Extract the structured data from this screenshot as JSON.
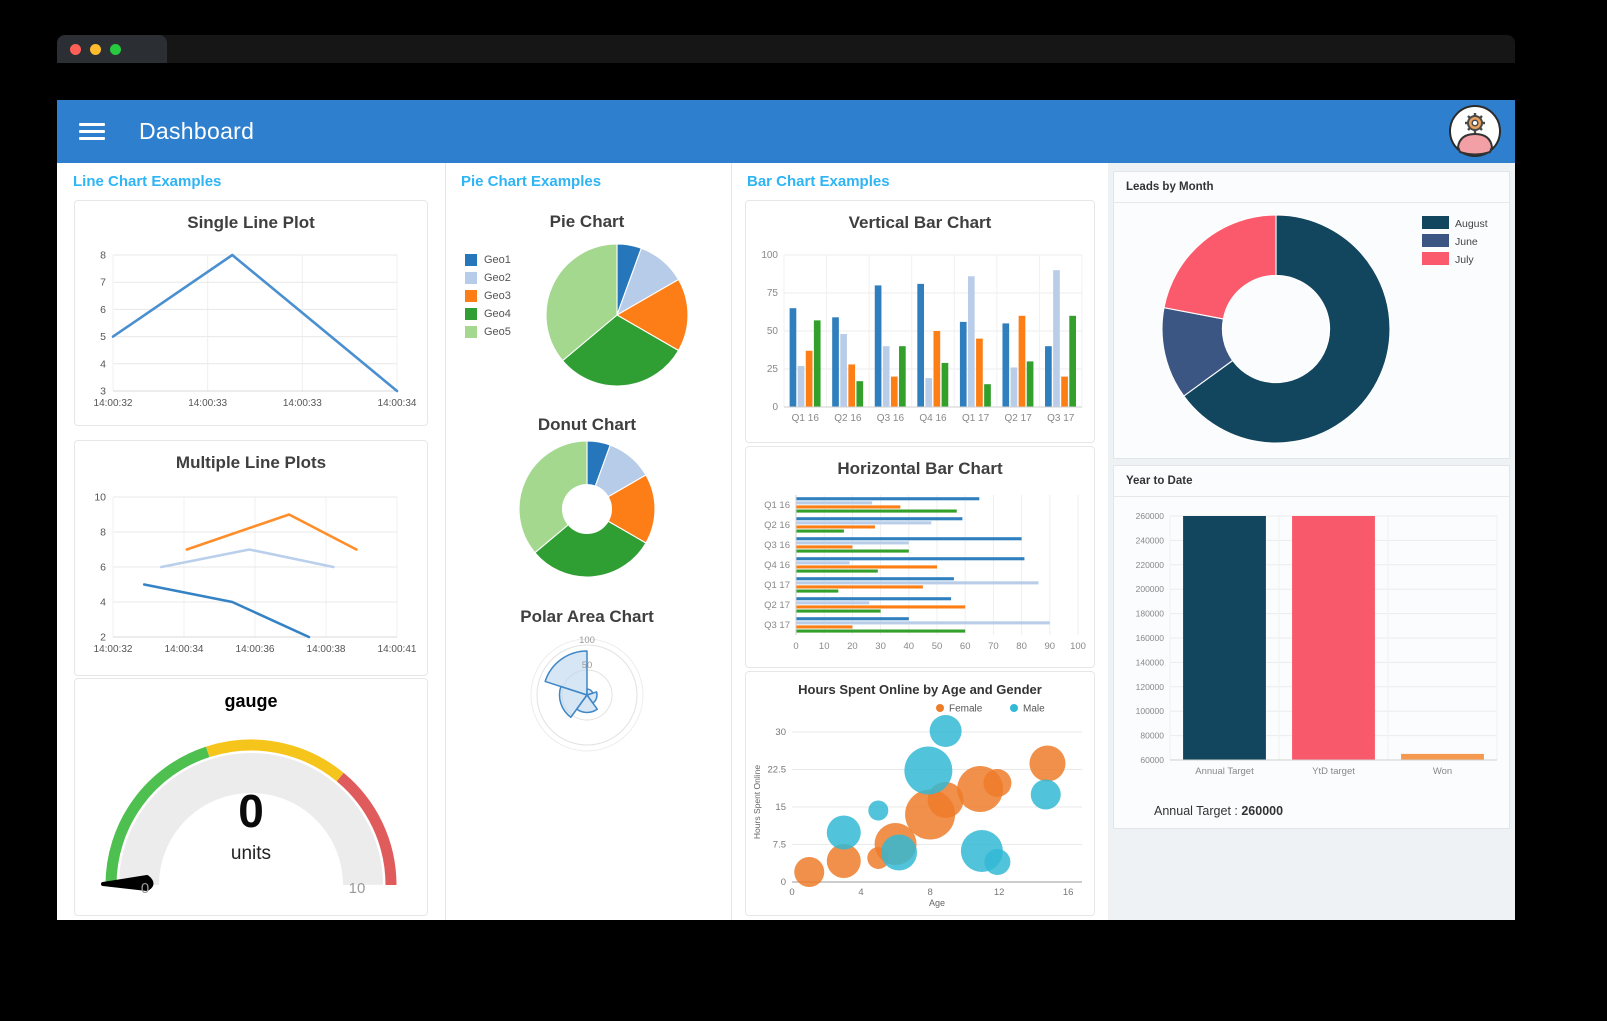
{
  "window": {
    "traffic_lights": [
      {
        "name": "close",
        "color": "#ff5f57"
      },
      {
        "name": "minimize",
        "color": "#febc2e"
      },
      {
        "name": "zoom",
        "color": "#28c840"
      }
    ]
  },
  "app_bar": {
    "title": "Dashboard",
    "color": "#2e7fce"
  },
  "sections": [
    {
      "id": "line",
      "label": "Line Chart Examples"
    },
    {
      "id": "pie",
      "label": "Pie Chart Examples"
    },
    {
      "id": "bar",
      "label": "Bar Chart Examples"
    }
  ],
  "panels": {
    "leads": {
      "title": "Leads by Month"
    },
    "ytd": {
      "title": "Year to Date",
      "footer_label": "Annual Target : ",
      "footer_value": "260000"
    }
  },
  "chart_data": [
    {
      "id": "single_line",
      "type": "line",
      "title": "Single Line Plot",
      "x_ticks": [
        "14:00:32",
        "14:00:33",
        "14:00:33",
        "14:00:34"
      ],
      "ylim": [
        3,
        8
      ],
      "y_ticks": [
        3,
        4,
        5,
        6,
        7,
        8
      ],
      "series": [
        {
          "color": "#4a90d0",
          "points": [
            [
              0,
              5
            ],
            [
              0.42,
              8
            ],
            [
              1,
              3
            ]
          ]
        }
      ]
    },
    {
      "id": "multi_line",
      "type": "line",
      "title": "Multiple Line Plots",
      "x_ticks": [
        "14:00:32",
        "14:00:34",
        "14:00:36",
        "14:00:38",
        "14:00:41"
      ],
      "ylim": [
        2,
        10
      ],
      "y_ticks": [
        2,
        4,
        6,
        8,
        10
      ],
      "series": [
        {
          "color": "#3583c4",
          "points": [
            [
              0.11,
              5
            ],
            [
              0.42,
              4
            ],
            [
              0.69,
              2
            ]
          ]
        },
        {
          "color": "#b9cfec",
          "points": [
            [
              0.17,
              6
            ],
            [
              0.48,
              7
            ],
            [
              0.776,
              6
            ]
          ]
        },
        {
          "color": "#ff8e2a",
          "points": [
            [
              0.26,
              7
            ],
            [
              0.62,
              9
            ],
            [
              0.857,
              7
            ]
          ]
        }
      ]
    },
    {
      "id": "gauge",
      "type": "gauge",
      "title": "gauge",
      "value": "0",
      "units": "units",
      "min": 0,
      "max": 10,
      "zones": [
        {
          "color": "#4dc050",
          "to": 0.4
        },
        {
          "color": "#f5c51c",
          "to": 0.72
        },
        {
          "color": "#e05c5c",
          "to": 1
        }
      ]
    },
    {
      "id": "pie",
      "type": "pie",
      "title": "Pie Chart",
      "labels": [
        "Geo1",
        "Geo2",
        "Geo3",
        "Geo4",
        "Geo5"
      ],
      "values": [
        2,
        4,
        6,
        11,
        13
      ],
      "colors": [
        "#2676bb",
        "#b7cce9",
        "#fd7e17",
        "#2f9e33",
        "#a4d88f"
      ]
    },
    {
      "id": "donut",
      "type": "pie",
      "title": "Donut Chart",
      "inner_ratio": 0.36,
      "labels": [
        "Geo1",
        "Geo2",
        "Geo3",
        "Geo4",
        "Geo5"
      ],
      "values": [
        2,
        4,
        6,
        11,
        13
      ],
      "colors": [
        "#2676bb",
        "#b7cce9",
        "#fd7e17",
        "#2f9e33",
        "#a4d88f"
      ]
    },
    {
      "id": "polar",
      "type": "polar_area",
      "title": "Polar Area Chart",
      "values": [
        88,
        55,
        35,
        20,
        12
      ],
      "max": 112,
      "rings": [
        50,
        100
      ],
      "fill": "#bcd6ee",
      "fill_opacity": 0.6,
      "stroke": "#3f87c6",
      "direction": "counterclockwise_from_top"
    },
    {
      "id": "vbar",
      "type": "bar",
      "title": "Vertical Bar Chart",
      "categories": [
        "Q1 16",
        "Q2 16",
        "Q3 16",
        "Q4 16",
        "Q1 17",
        "Q2 17",
        "Q3 17"
      ],
      "ylim": [
        0,
        100
      ],
      "y_ticks": [
        0,
        25,
        50,
        75,
        100
      ],
      "series": [
        {
          "color": "#2f7ebd",
          "values": [
            65,
            59,
            80,
            81,
            56,
            55,
            40
          ]
        },
        {
          "color": "#b9cde8",
          "values": [
            27,
            48,
            40,
            19,
            86,
            26,
            90
          ]
        },
        {
          "color": "#fd7e14",
          "values": [
            37,
            28,
            20,
            50,
            45,
            60,
            20
          ]
        },
        {
          "color": "#33a02c",
          "values": [
            57,
            17,
            40,
            29,
            15,
            30,
            60
          ]
        }
      ]
    },
    {
      "id": "hbar",
      "type": "bar_h",
      "title": "Horizontal Bar Chart",
      "categories": [
        "Q1 16",
        "Q2 16",
        "Q3 16",
        "Q4 16",
        "Q1 17",
        "Q2 17",
        "Q3 17"
      ],
      "x_ticks": [
        0,
        10,
        20,
        30,
        40,
        50,
        60,
        70,
        80,
        90,
        100
      ],
      "series": [
        {
          "color": "#2f7ebd",
          "values": [
            65,
            59,
            80,
            81,
            56,
            55,
            40
          ]
        },
        {
          "color": "#b9cde8",
          "values": [
            27,
            48,
            40,
            19,
            86,
            26,
            90
          ]
        },
        {
          "color": "#fd7e14",
          "values": [
            37,
            28,
            20,
            50,
            45,
            60,
            20
          ]
        },
        {
          "color": "#33a02c",
          "values": [
            57,
            17,
            40,
            29,
            15,
            30,
            60
          ]
        }
      ]
    },
    {
      "id": "bubble",
      "type": "bubble",
      "title": "Hours Spent Online by Age and Gender",
      "xlabel": "Age",
      "ylabel": "Hours Spent Online",
      "xlim": [
        0,
        16.8
      ],
      "ylim": [
        0,
        32
      ],
      "x_ticks": [
        0,
        4,
        8,
        12,
        16
      ],
      "y_ticks": [
        0,
        7.5,
        15,
        22.5,
        30
      ],
      "series": [
        {
          "name": "Female",
          "color": "#ee7d2a",
          "points": [
            [
              1,
              2,
              15
            ],
            [
              3,
              4.2,
              17
            ],
            [
              5,
              4.8,
              11
            ],
            [
              6,
              7.6,
              21
            ],
            [
              8,
              13.5,
              25
            ],
            [
              8.9,
              16.4,
              18
            ],
            [
              10.9,
              18.6,
              23
            ],
            [
              11.9,
              19.8,
              14
            ],
            [
              14.8,
              23.7,
              18
            ]
          ]
        },
        {
          "name": "Male",
          "color": "#32b9d4",
          "points": [
            [
              3,
              9.9,
              17
            ],
            [
              6.2,
              5.9,
              18
            ],
            [
              5,
              14.3,
              10
            ],
            [
              7.9,
              22.3,
              24
            ],
            [
              8.9,
              30.2,
              16
            ],
            [
              11,
              6.2,
              21
            ],
            [
              11.9,
              4,
              13
            ],
            [
              14.7,
              17.5,
              15
            ]
          ]
        }
      ]
    },
    {
      "id": "leads_donut",
      "type": "pie",
      "title": "Leads by Month",
      "inner_ratio": 0.47,
      "labels": [
        "August",
        "June",
        "July"
      ],
      "values": [
        65,
        13,
        22
      ],
      "colors": [
        "#12455e",
        "#3c5683",
        "#fa5a6b"
      ],
      "legend_position": "right"
    },
    {
      "id": "ytd_bar",
      "type": "bar",
      "title": "Year to Date",
      "categories": [
        "Annual Target",
        "YtD target",
        "Won"
      ],
      "values": [
        260000,
        260000,
        65000
      ],
      "colors": [
        "#12455e",
        "#f8596b",
        "#f5994e"
      ],
      "ylim": [
        60000,
        260000
      ],
      "y_ticks": [
        60000,
        80000,
        100000,
        120000,
        140000,
        160000,
        180000,
        200000,
        220000,
        240000,
        260000
      ],
      "annual_target": 260000
    }
  ]
}
